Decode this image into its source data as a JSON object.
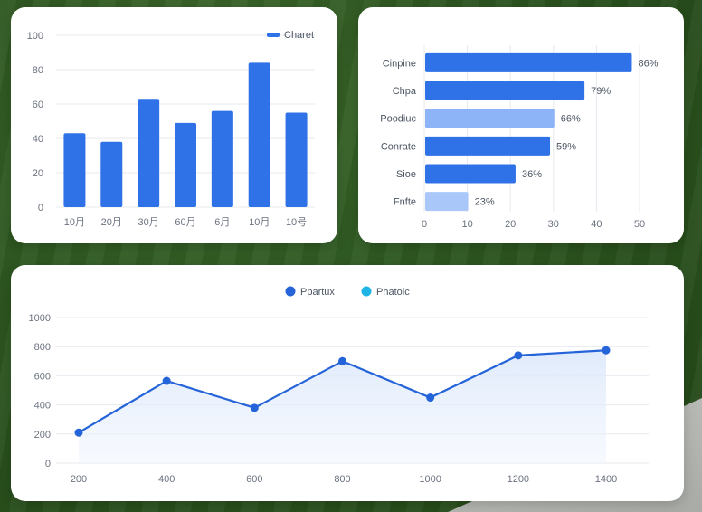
{
  "colors": {
    "bar": "#2f72e8",
    "bar_light": "#8db4f7",
    "bar_lighter": "#a9c7f9",
    "line": "#2563d9",
    "legend_secondary": "#1fb4e6",
    "grid": "#e6e9ee",
    "axis_text": "#6b7280"
  },
  "chart_data": [
    {
      "type": "bar",
      "legend": [
        "Charet"
      ],
      "legend_position": "top-right",
      "categories": [
        "10月",
        "20月",
        "30月",
        "60月",
        "6月",
        "10月",
        "10号"
      ],
      "values": [
        43,
        38,
        63,
        49,
        56,
        84,
        55
      ],
      "yticks": [
        "0",
        "20",
        "40",
        "60",
        "80",
        "100"
      ],
      "ylim": [
        0,
        100
      ],
      "grid": true
    },
    {
      "type": "bar",
      "orientation": "horizontal",
      "categories": [
        "Cinpine",
        "Chpa",
        "Poodiuc",
        "Conrate",
        "Sioe",
        "Fnfte"
      ],
      "values": [
        48,
        37,
        30,
        29,
        21,
        10
      ],
      "data_labels": [
        "86%",
        "79%",
        "66%",
        "59%",
        "36%",
        "23%"
      ],
      "shades": [
        "bar",
        "bar",
        "bar_light",
        "bar",
        "bar",
        "bar_lighter"
      ],
      "xticks": [
        "0",
        "10",
        "20",
        "30",
        "40",
        "50"
      ],
      "xlim": [
        0,
        50
      ],
      "grid": true
    },
    {
      "type": "line",
      "legend": [
        "Ppartux",
        "Phatolc"
      ],
      "legend_position": "top-center",
      "x": [
        200,
        400,
        600,
        800,
        1000,
        1200,
        1400
      ],
      "xticks": [
        "200",
        "400",
        "600",
        "800",
        "1000",
        "1200",
        "1400"
      ],
      "series": [
        {
          "name": "Ppartux",
          "values": [
            210,
            565,
            380,
            700,
            450,
            740,
            775
          ]
        }
      ],
      "yticks": [
        "0",
        "200",
        "400",
        "600",
        "800",
        "1000"
      ],
      "ylim": [
        0,
        1000
      ],
      "area_fill": true,
      "grid": true
    }
  ]
}
